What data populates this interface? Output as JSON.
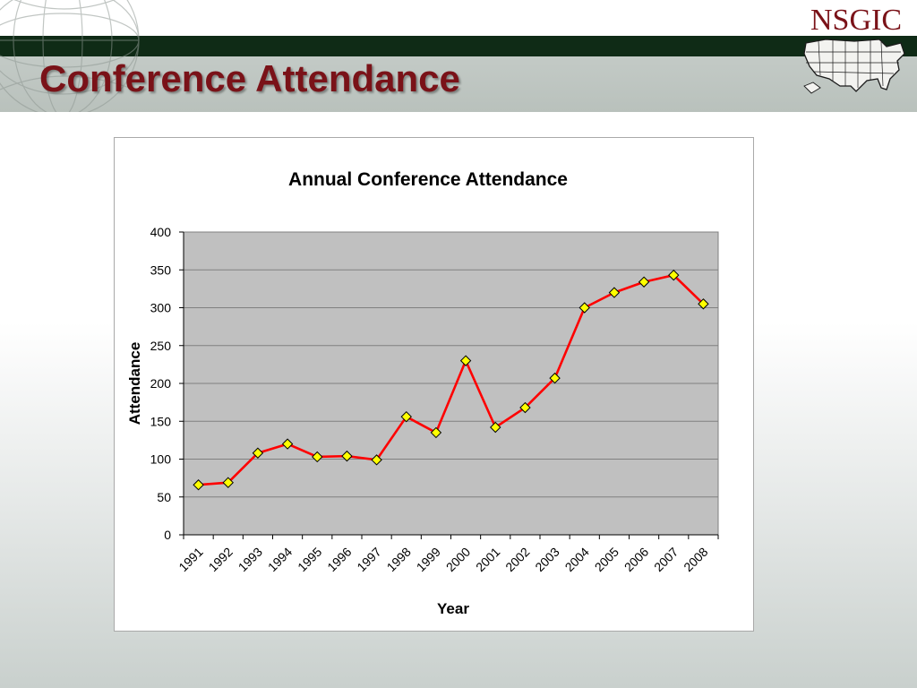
{
  "slide": {
    "title": "Conference Attendance",
    "logo_text": "NSGIC"
  },
  "colors": {
    "title": "#7a1218",
    "header_rule": "#0f2b16",
    "plot_background": "#c0c0c0",
    "line": "#ff0000",
    "marker_fill": "#ffff00"
  },
  "icons": {
    "globe": "globe-wireframe-icon",
    "logo_map": "us-states-map-icon"
  },
  "chart_data": {
    "type": "line",
    "title": "Annual Conference Attendance",
    "xlabel": "Year",
    "ylabel": "Attendance",
    "categories": [
      "1991",
      "1992",
      "1993",
      "1994",
      "1995",
      "1996",
      "1997",
      "1998",
      "1999",
      "2000",
      "2001",
      "2002",
      "2003",
      "2004",
      "2005",
      "2006",
      "2007",
      "2008"
    ],
    "values": [
      66,
      69,
      108,
      120,
      103,
      104,
      99,
      156,
      135,
      230,
      142,
      168,
      207,
      300,
      320,
      334,
      343,
      305
    ],
    "ylim": [
      0,
      400
    ],
    "yticks": [
      0,
      50,
      100,
      150,
      200,
      250,
      300,
      350,
      400
    ],
    "grid": true,
    "legend": "none",
    "marker": "diamond"
  }
}
